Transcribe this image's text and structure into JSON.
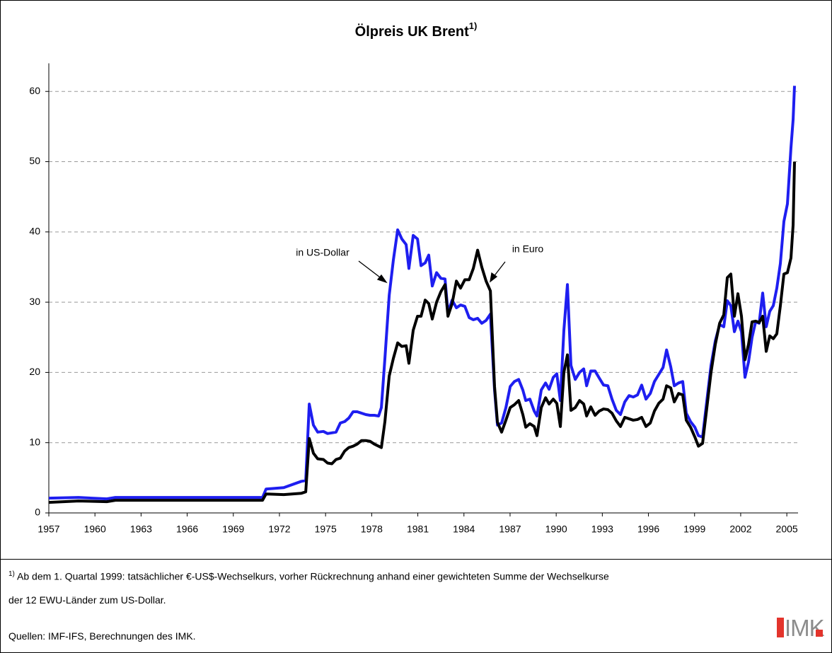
{
  "chart_data": {
    "type": "line",
    "title": "Ölpreis UK Brent",
    "title_note": "1)",
    "annotations": [
      "in US-Dollar",
      "in Euro"
    ],
    "x": [
      1957.0,
      1958.93,
      1960.77,
      1961.33,
      1970.9,
      1971.13,
      1972.28,
      1973.43,
      1973.71,
      1973.94,
      1974.21,
      1974.49,
      1974.86,
      1975.13,
      1975.41,
      1975.68,
      1975.96,
      1976.24,
      1976.51,
      1976.79,
      1977.06,
      1977.34,
      1977.62,
      1977.89,
      1978.17,
      1978.45,
      1978.63,
      1978.86,
      1979.14,
      1979.41,
      1979.69,
      1979.96,
      1980.24,
      1980.42,
      1980.7,
      1980.98,
      1981.21,
      1981.48,
      1981.71,
      1981.94,
      1982.22,
      1982.5,
      1982.77,
      1982.96,
      1983.23,
      1983.51,
      1983.78,
      1984.06,
      1984.34,
      1984.61,
      1984.89,
      1985.16,
      1985.44,
      1985.72,
      1985.99,
      1986.18,
      1986.45,
      1986.73,
      1987.01,
      1987.28,
      1987.56,
      1987.83,
      1988.02,
      1988.29,
      1988.57,
      1988.75,
      1989.03,
      1989.31,
      1989.54,
      1989.81,
      1990.04,
      1990.27,
      1990.5,
      1990.73,
      1990.96,
      1991.24,
      1991.52,
      1991.79,
      1991.98,
      1992.25,
      1992.53,
      1992.8,
      1993.08,
      1993.36,
      1993.63,
      1993.91,
      1994.18,
      1994.46,
      1994.74,
      1995.01,
      1995.29,
      1995.56,
      1995.84,
      1996.12,
      1996.39,
      1996.67,
      1996.95,
      1997.18,
      1997.45,
      1997.68,
      1997.96,
      1998.23,
      1998.46,
      1998.74,
      1999.02,
      1999.25,
      1999.52,
      1999.8,
      2000.07,
      2000.35,
      2000.63,
      2000.9,
      2001.13,
      2001.36,
      2001.59,
      2001.82,
      2002.05,
      2002.28,
      2002.51,
      2002.74,
      2002.97,
      2003.2,
      2003.43,
      2003.66,
      2003.89,
      2004.12,
      2004.35,
      2004.58,
      2004.81,
      2005.04,
      2005.27,
      2005.41,
      2005.5
    ],
    "series": [
      {
        "name": "in US-Dollar",
        "color": "#1e1ef0",
        "values": [
          2.1,
          2.2,
          2.0,
          2.2,
          2.2,
          3.4,
          3.6,
          4.5,
          4.6,
          15.5,
          12.5,
          11.5,
          11.6,
          11.3,
          11.4,
          11.5,
          12.8,
          13.0,
          13.5,
          14.4,
          14.4,
          14.2,
          14.0,
          13.9,
          13.9,
          13.8,
          15.0,
          22,
          31,
          36,
          40.3,
          39,
          38.2,
          34.8,
          39.5,
          39,
          35.2,
          35.6,
          36.7,
          32.3,
          34.2,
          33.4,
          33.3,
          28.5,
          30.3,
          29.2,
          29.6,
          29.4,
          27.8,
          27.5,
          27.7,
          27.0,
          27.4,
          28.3,
          17.5,
          12.5,
          12.8,
          15,
          18,
          18.7,
          19,
          17.5,
          16,
          16.2,
          14.5,
          13.8,
          17.5,
          18.5,
          17.6,
          19.3,
          19.8,
          16,
          26,
          32.5,
          21,
          19,
          20,
          20.5,
          18.1,
          20.2,
          20.2,
          19.2,
          18.2,
          18.1,
          16.2,
          14.6,
          14.0,
          15.8,
          16.7,
          16.5,
          16.8,
          18.2,
          16.2,
          17.0,
          18.7,
          19.7,
          20.7,
          23.2,
          20.8,
          18.1,
          18.5,
          18.7,
          14.2,
          13.0,
          12.2,
          11.0,
          10.8,
          16.0,
          21,
          24.5,
          26.8,
          26.5,
          30.2,
          29.5,
          25.8,
          27.3,
          25.8,
          19.3,
          21.5,
          25,
          27.2,
          27,
          31.3,
          26.5,
          28.7,
          29.5,
          32,
          35.5,
          41.5,
          44,
          52,
          56,
          60.8
        ]
      },
      {
        "name": "in Euro",
        "color": "#000000",
        "values": [
          1.5,
          1.7,
          1.6,
          1.8,
          1.8,
          2.7,
          2.6,
          2.8,
          3.0,
          10.6,
          8.5,
          7.7,
          7.6,
          7.1,
          7.0,
          7.6,
          7.8,
          8.8,
          9.3,
          9.5,
          9.8,
          10.3,
          10.3,
          10.2,
          9.8,
          9.5,
          9.3,
          13,
          19.5,
          22,
          24.2,
          23.7,
          23.8,
          21.3,
          26,
          28,
          28,
          30.3,
          29.8,
          27.6,
          30,
          31.5,
          32.5,
          28,
          29.8,
          33,
          32,
          33.2,
          33.2,
          34.8,
          37.4,
          35,
          33,
          31.6,
          18,
          12.9,
          11.5,
          13.2,
          15,
          15.4,
          16,
          14,
          12.2,
          12.7,
          12.3,
          11,
          15,
          16.4,
          15.5,
          16.2,
          15.6,
          12.3,
          20,
          22.5,
          14.6,
          15,
          16,
          15.5,
          13.8,
          15.1,
          13.9,
          14.5,
          14.8,
          14.7,
          14.2,
          13.1,
          12.3,
          13.6,
          13.4,
          13.2,
          13.3,
          13.6,
          12.3,
          12.8,
          14.5,
          15.6,
          16.2,
          18.1,
          17.8,
          15.8,
          17,
          16.8,
          13.2,
          12.2,
          10.8,
          9.5,
          9.9,
          15,
          20,
          24,
          27,
          28.2,
          33.5,
          34,
          28,
          31.2,
          28,
          21.8,
          24,
          27.2,
          27.3,
          27.1,
          28,
          23,
          25.2,
          24.8,
          25.5,
          29.5,
          34,
          34.2,
          36.3,
          41,
          50
        ]
      }
    ],
    "xlim": [
      1957,
      2005.73
    ],
    "xticks": [
      1957,
      1960,
      1963,
      1966,
      1969,
      1972,
      1975,
      1978,
      1981,
      1984,
      1987,
      1990,
      1993,
      1996,
      1999,
      2002,
      2005
    ],
    "ylim": [
      0,
      64
    ],
    "yticks": [
      0,
      10,
      20,
      30,
      40,
      50,
      60
    ],
    "grid": true
  },
  "footnote": {
    "mark": "1)",
    "lines": [
      "Ab dem 1. Quartal 1999: tatsächlicher €-US$-Wechselkurs, vorher Rückrechnung anhand einer gewichteten Summe der Wechselkurse",
      "der 12 EWU-Länder zum US-Dollar."
    ]
  },
  "source": "Quellen: IMF-IFS, Berechnungen des IMK.",
  "logo": "IMK"
}
